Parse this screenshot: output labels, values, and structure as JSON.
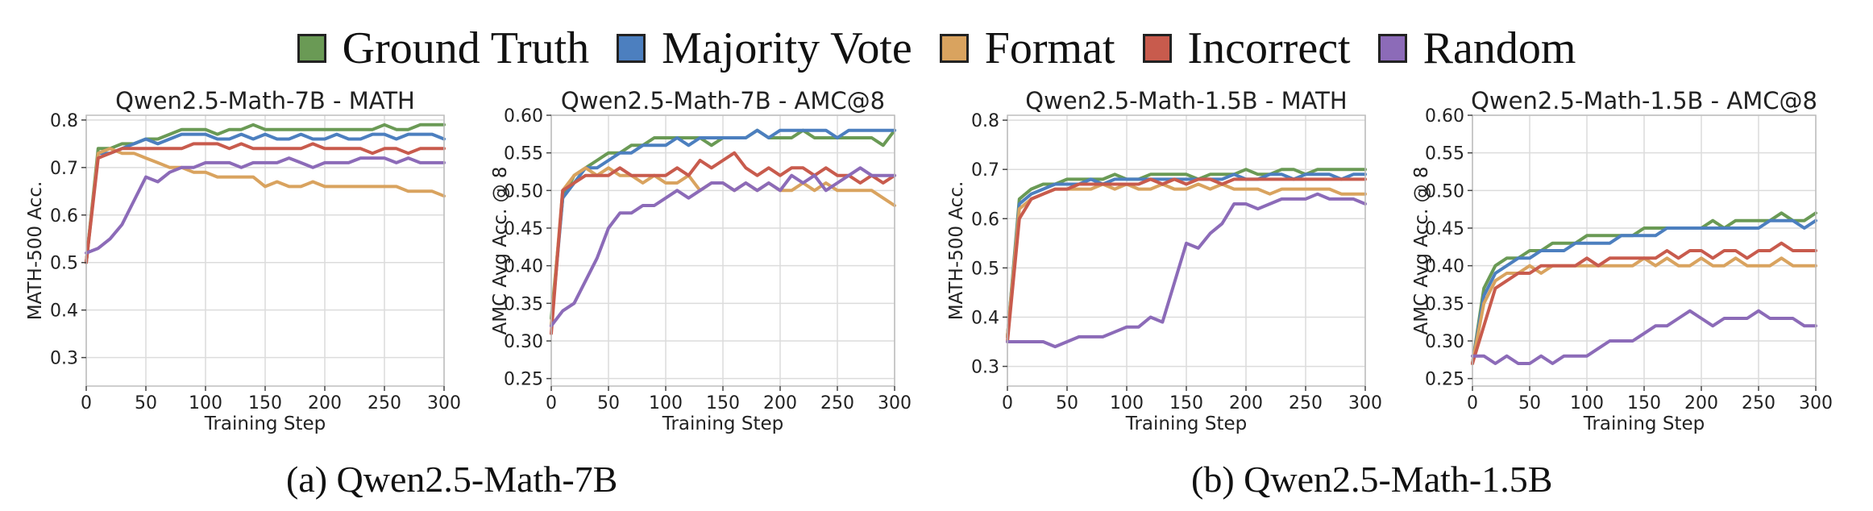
{
  "legend": [
    {
      "name": "Ground Truth",
      "color": "#6a9a55"
    },
    {
      "name": "Majority Vote",
      "color": "#4c7fbf"
    },
    {
      "name": "Format",
      "color": "#d9a35f"
    },
    {
      "name": "Incorrect",
      "color": "#c85b4d"
    },
    {
      "name": "Random",
      "color": "#8c6bb8"
    }
  ],
  "captions": {
    "a": "(a) Qwen2.5-Math-7B",
    "b": "(b) Qwen2.5-Math-1.5B"
  },
  "chart_data": [
    {
      "type": "line",
      "title": "Qwen2.5-Math-7B - MATH",
      "xlabel": "Training Step",
      "ylabel": "MATH-500 Acc.",
      "xlim": [
        0,
        300
      ],
      "ylim": [
        0.24,
        0.81
      ],
      "xticks": [
        0,
        50,
        100,
        150,
        200,
        250,
        300
      ],
      "yticks": [
        0.3,
        0.4,
        0.5,
        0.6,
        0.7,
        0.8
      ],
      "ytick_labels": [
        "0.3",
        "0.4",
        "0.5",
        "0.6",
        "0.7",
        "0.8"
      ],
      "grid": true,
      "x": [
        0,
        10,
        20,
        30,
        40,
        50,
        60,
        70,
        80,
        90,
        100,
        110,
        120,
        130,
        140,
        150,
        160,
        170,
        180,
        190,
        200,
        210,
        220,
        230,
        240,
        250,
        260,
        270,
        280,
        290,
        300
      ],
      "series": [
        {
          "name": "Ground Truth",
          "values": [
            0.5,
            0.74,
            0.74,
            0.75,
            0.75,
            0.76,
            0.76,
            0.77,
            0.78,
            0.78,
            0.78,
            0.77,
            0.78,
            0.78,
            0.79,
            0.78,
            0.78,
            0.78,
            0.78,
            0.78,
            0.78,
            0.78,
            0.78,
            0.78,
            0.78,
            0.79,
            0.78,
            0.78,
            0.79,
            0.79,
            0.79
          ]
        },
        {
          "name": "Majority Vote",
          "values": [
            0.5,
            0.73,
            0.73,
            0.74,
            0.75,
            0.76,
            0.75,
            0.76,
            0.77,
            0.77,
            0.77,
            0.76,
            0.76,
            0.77,
            0.76,
            0.77,
            0.76,
            0.76,
            0.77,
            0.76,
            0.76,
            0.77,
            0.76,
            0.76,
            0.77,
            0.77,
            0.76,
            0.77,
            0.77,
            0.77,
            0.76
          ]
        },
        {
          "name": "Format",
          "values": [
            0.5,
            0.73,
            0.74,
            0.73,
            0.73,
            0.72,
            0.71,
            0.7,
            0.7,
            0.69,
            0.69,
            0.68,
            0.68,
            0.68,
            0.68,
            0.66,
            0.67,
            0.66,
            0.66,
            0.67,
            0.66,
            0.66,
            0.66,
            0.66,
            0.66,
            0.66,
            0.66,
            0.65,
            0.65,
            0.65,
            0.64
          ]
        },
        {
          "name": "Incorrect",
          "values": [
            0.5,
            0.72,
            0.73,
            0.74,
            0.74,
            0.74,
            0.74,
            0.74,
            0.74,
            0.75,
            0.75,
            0.75,
            0.74,
            0.75,
            0.74,
            0.74,
            0.74,
            0.74,
            0.74,
            0.75,
            0.74,
            0.74,
            0.74,
            0.74,
            0.73,
            0.74,
            0.74,
            0.73,
            0.74,
            0.74,
            0.74
          ]
        },
        {
          "name": "Random",
          "values": [
            0.52,
            0.53,
            0.55,
            0.58,
            0.63,
            0.68,
            0.67,
            0.69,
            0.7,
            0.7,
            0.71,
            0.71,
            0.71,
            0.7,
            0.71,
            0.71,
            0.71,
            0.72,
            0.71,
            0.7,
            0.71,
            0.71,
            0.71,
            0.72,
            0.72,
            0.72,
            0.71,
            0.72,
            0.71,
            0.71,
            0.71
          ]
        }
      ]
    },
    {
      "type": "line",
      "title": "Qwen2.5-Math-7B - AMC@8",
      "xlabel": "Training Step",
      "ylabel": "AMC Avg Acc. @ 8",
      "xlim": [
        0,
        300
      ],
      "ylim": [
        0.24,
        0.6
      ],
      "xticks": [
        0,
        50,
        100,
        150,
        200,
        250,
        300
      ],
      "yticks": [
        0.25,
        0.3,
        0.35,
        0.4,
        0.45,
        0.5,
        0.55,
        0.6
      ],
      "ytick_labels": [
        "0.25",
        "0.30",
        "0.35",
        "0.40",
        "0.45",
        "0.50",
        "0.55",
        "0.60"
      ],
      "grid": true,
      "x": [
        0,
        10,
        20,
        30,
        40,
        50,
        60,
        70,
        80,
        90,
        100,
        110,
        120,
        130,
        140,
        150,
        160,
        170,
        180,
        190,
        200,
        210,
        220,
        230,
        240,
        250,
        260,
        270,
        280,
        290,
        300
      ],
      "series": [
        {
          "name": "Ground Truth",
          "values": [
            0.33,
            0.49,
            0.52,
            0.53,
            0.54,
            0.55,
            0.55,
            0.56,
            0.56,
            0.57,
            0.57,
            0.57,
            0.57,
            0.57,
            0.56,
            0.57,
            0.57,
            0.57,
            0.58,
            0.57,
            0.57,
            0.57,
            0.58,
            0.57,
            0.57,
            0.57,
            0.57,
            0.57,
            0.57,
            0.56,
            0.58
          ]
        },
        {
          "name": "Majority Vote",
          "values": [
            0.32,
            0.49,
            0.51,
            0.53,
            0.53,
            0.54,
            0.55,
            0.55,
            0.56,
            0.56,
            0.56,
            0.57,
            0.56,
            0.57,
            0.57,
            0.57,
            0.57,
            0.57,
            0.58,
            0.57,
            0.58,
            0.58,
            0.58,
            0.58,
            0.58,
            0.57,
            0.58,
            0.58,
            0.58,
            0.58,
            0.58
          ]
        },
        {
          "name": "Format",
          "values": [
            0.32,
            0.5,
            0.52,
            0.53,
            0.52,
            0.53,
            0.52,
            0.52,
            0.51,
            0.52,
            0.51,
            0.51,
            0.52,
            0.5,
            0.51,
            0.51,
            0.5,
            0.51,
            0.5,
            0.51,
            0.5,
            0.5,
            0.51,
            0.5,
            0.51,
            0.5,
            0.5,
            0.5,
            0.5,
            0.49,
            0.48
          ]
        },
        {
          "name": "Incorrect",
          "values": [
            0.31,
            0.5,
            0.51,
            0.52,
            0.52,
            0.52,
            0.53,
            0.52,
            0.52,
            0.52,
            0.52,
            0.53,
            0.52,
            0.54,
            0.53,
            0.54,
            0.55,
            0.53,
            0.52,
            0.53,
            0.52,
            0.53,
            0.53,
            0.52,
            0.53,
            0.52,
            0.52,
            0.51,
            0.52,
            0.51,
            0.52
          ]
        },
        {
          "name": "Random",
          "values": [
            0.32,
            0.34,
            0.35,
            0.38,
            0.41,
            0.45,
            0.47,
            0.47,
            0.48,
            0.48,
            0.49,
            0.5,
            0.49,
            0.5,
            0.51,
            0.51,
            0.5,
            0.51,
            0.5,
            0.51,
            0.5,
            0.52,
            0.51,
            0.52,
            0.5,
            0.51,
            0.52,
            0.53,
            0.52,
            0.52,
            0.52
          ]
        }
      ]
    },
    {
      "type": "line",
      "title": "Qwen2.5-Math-1.5B - MATH",
      "xlabel": "Training Step",
      "ylabel": "MATH-500 Acc.",
      "xlim": [
        0,
        300
      ],
      "ylim": [
        0.26,
        0.81
      ],
      "xticks": [
        0,
        50,
        100,
        150,
        200,
        250,
        300
      ],
      "yticks": [
        0.3,
        0.4,
        0.5,
        0.6,
        0.7,
        0.8
      ],
      "ytick_labels": [
        "0.3",
        "0.4",
        "0.5",
        "0.6",
        "0.7",
        "0.8"
      ],
      "grid": true,
      "x": [
        0,
        10,
        20,
        30,
        40,
        50,
        60,
        70,
        80,
        90,
        100,
        110,
        120,
        130,
        140,
        150,
        160,
        170,
        180,
        190,
        200,
        210,
        220,
        230,
        240,
        250,
        260,
        270,
        280,
        290,
        300
      ],
      "series": [
        {
          "name": "Ground Truth",
          "values": [
            0.36,
            0.64,
            0.66,
            0.67,
            0.67,
            0.68,
            0.68,
            0.68,
            0.68,
            0.69,
            0.68,
            0.68,
            0.69,
            0.69,
            0.69,
            0.69,
            0.68,
            0.69,
            0.69,
            0.69,
            0.7,
            0.69,
            0.69,
            0.7,
            0.7,
            0.69,
            0.7,
            0.7,
            0.7,
            0.7,
            0.7
          ]
        },
        {
          "name": "Majority Vote",
          "values": [
            0.36,
            0.63,
            0.65,
            0.66,
            0.67,
            0.67,
            0.67,
            0.68,
            0.67,
            0.68,
            0.68,
            0.68,
            0.68,
            0.68,
            0.68,
            0.68,
            0.68,
            0.68,
            0.68,
            0.69,
            0.68,
            0.68,
            0.69,
            0.69,
            0.68,
            0.69,
            0.69,
            0.69,
            0.68,
            0.69,
            0.69
          ]
        },
        {
          "name": "Format",
          "values": [
            0.36,
            0.62,
            0.64,
            0.65,
            0.66,
            0.66,
            0.66,
            0.66,
            0.67,
            0.66,
            0.67,
            0.66,
            0.66,
            0.67,
            0.66,
            0.66,
            0.67,
            0.66,
            0.67,
            0.66,
            0.66,
            0.66,
            0.65,
            0.66,
            0.66,
            0.66,
            0.66,
            0.66,
            0.65,
            0.65,
            0.65
          ]
        },
        {
          "name": "Incorrect",
          "values": [
            0.35,
            0.6,
            0.64,
            0.65,
            0.66,
            0.66,
            0.67,
            0.67,
            0.67,
            0.67,
            0.67,
            0.67,
            0.68,
            0.67,
            0.68,
            0.67,
            0.68,
            0.68,
            0.67,
            0.68,
            0.68,
            0.68,
            0.68,
            0.68,
            0.68,
            0.68,
            0.68,
            0.68,
            0.68,
            0.68,
            0.68
          ]
        },
        {
          "name": "Random",
          "values": [
            0.35,
            0.35,
            0.35,
            0.35,
            0.34,
            0.35,
            0.36,
            0.36,
            0.36,
            0.37,
            0.38,
            0.38,
            0.4,
            0.39,
            0.47,
            0.55,
            0.54,
            0.57,
            0.59,
            0.63,
            0.63,
            0.62,
            0.63,
            0.64,
            0.64,
            0.64,
            0.65,
            0.64,
            0.64,
            0.64,
            0.63
          ]
        }
      ]
    },
    {
      "type": "line",
      "title": "Qwen2.5-Math-1.5B - AMC@8",
      "xlabel": "Training Step",
      "ylabel": "AMC Avg Acc. @ 8",
      "xlim": [
        0,
        300
      ],
      "ylim": [
        0.24,
        0.6
      ],
      "xticks": [
        0,
        50,
        100,
        150,
        200,
        250,
        300
      ],
      "yticks": [
        0.25,
        0.3,
        0.35,
        0.4,
        0.45,
        0.5,
        0.55,
        0.6
      ],
      "ytick_labels": [
        "0.25",
        "0.30",
        "0.35",
        "0.40",
        "0.45",
        "0.50",
        "0.55",
        "0.60"
      ],
      "grid": true,
      "x": [
        0,
        10,
        20,
        30,
        40,
        50,
        60,
        70,
        80,
        90,
        100,
        110,
        120,
        130,
        140,
        150,
        160,
        170,
        180,
        190,
        200,
        210,
        220,
        230,
        240,
        250,
        260,
        270,
        280,
        290,
        300
      ],
      "series": [
        {
          "name": "Ground Truth",
          "values": [
            0.27,
            0.37,
            0.4,
            0.41,
            0.41,
            0.42,
            0.42,
            0.43,
            0.43,
            0.43,
            0.44,
            0.44,
            0.44,
            0.44,
            0.44,
            0.45,
            0.45,
            0.45,
            0.45,
            0.45,
            0.45,
            0.46,
            0.45,
            0.46,
            0.46,
            0.46,
            0.46,
            0.47,
            0.46,
            0.46,
            0.47
          ]
        },
        {
          "name": "Majority Vote",
          "values": [
            0.27,
            0.36,
            0.39,
            0.4,
            0.41,
            0.41,
            0.42,
            0.42,
            0.42,
            0.43,
            0.43,
            0.43,
            0.43,
            0.44,
            0.44,
            0.44,
            0.44,
            0.45,
            0.45,
            0.45,
            0.45,
            0.45,
            0.45,
            0.45,
            0.45,
            0.45,
            0.46,
            0.46,
            0.46,
            0.45,
            0.46
          ]
        },
        {
          "name": "Format",
          "values": [
            0.27,
            0.35,
            0.38,
            0.39,
            0.39,
            0.4,
            0.39,
            0.4,
            0.4,
            0.4,
            0.4,
            0.4,
            0.4,
            0.4,
            0.4,
            0.41,
            0.4,
            0.41,
            0.4,
            0.4,
            0.41,
            0.4,
            0.4,
            0.41,
            0.4,
            0.4,
            0.4,
            0.41,
            0.4,
            0.4,
            0.4
          ]
        },
        {
          "name": "Incorrect",
          "values": [
            0.27,
            0.32,
            0.37,
            0.38,
            0.39,
            0.39,
            0.4,
            0.4,
            0.4,
            0.4,
            0.41,
            0.4,
            0.41,
            0.41,
            0.41,
            0.41,
            0.41,
            0.42,
            0.41,
            0.42,
            0.42,
            0.41,
            0.42,
            0.42,
            0.41,
            0.42,
            0.42,
            0.43,
            0.42,
            0.42,
            0.42
          ]
        },
        {
          "name": "Random",
          "values": [
            0.28,
            0.28,
            0.27,
            0.28,
            0.27,
            0.27,
            0.28,
            0.27,
            0.28,
            0.28,
            0.28,
            0.29,
            0.3,
            0.3,
            0.3,
            0.31,
            0.32,
            0.32,
            0.33,
            0.34,
            0.33,
            0.32,
            0.33,
            0.33,
            0.33,
            0.34,
            0.33,
            0.33,
            0.33,
            0.32,
            0.32
          ]
        }
      ]
    }
  ]
}
